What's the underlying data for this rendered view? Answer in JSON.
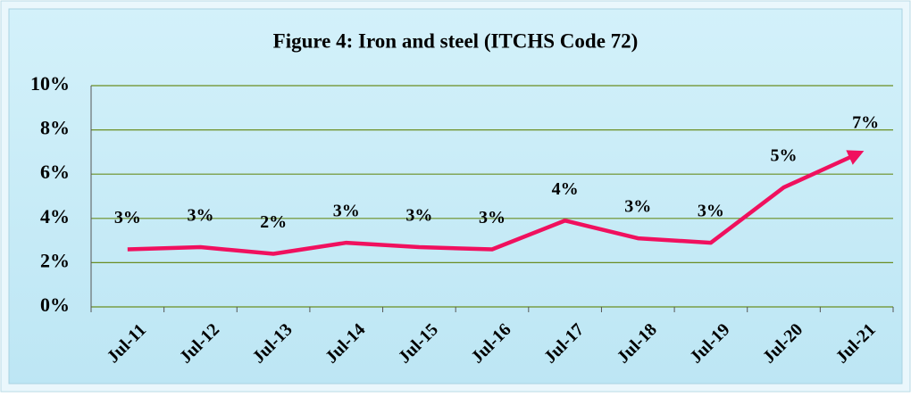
{
  "chart_data": {
    "type": "line",
    "title": "Figure 4:  Iron and steel (ITCHS Code 72)",
    "categories": [
      "Jul-11",
      "Jul-12",
      "Jul-13",
      "Jul-14",
      "Jul-15",
      "Jul-16",
      "Jul-17",
      "Jul-18",
      "Jul-19",
      "Jul-20",
      "Jul-21"
    ],
    "series": [
      {
        "color": "#f0105e",
        "values": [
          2.6,
          2.7,
          2.4,
          2.9,
          2.7,
          2.6,
          3.9,
          3.1,
          2.9,
          5.4,
          6.9
        ],
        "value_labels": [
          "3%",
          "3%",
          "2%",
          "3%",
          "3%",
          "3%",
          "4%",
          "3%",
          "3%",
          "5%",
          "7%"
        ]
      }
    ],
    "ylim": [
      0,
      10
    ],
    "yticks": [
      {
        "value": 0,
        "label": "0%"
      },
      {
        "value": 2,
        "label": "2%"
      },
      {
        "value": 4,
        "label": "4%"
      },
      {
        "value": 6,
        "label": "6%"
      },
      {
        "value": 8,
        "label": "8%"
      },
      {
        "value": 10,
        "label": "10%"
      }
    ],
    "grid": true,
    "grid_color": "#6b8e23",
    "end_arrow": true
  }
}
